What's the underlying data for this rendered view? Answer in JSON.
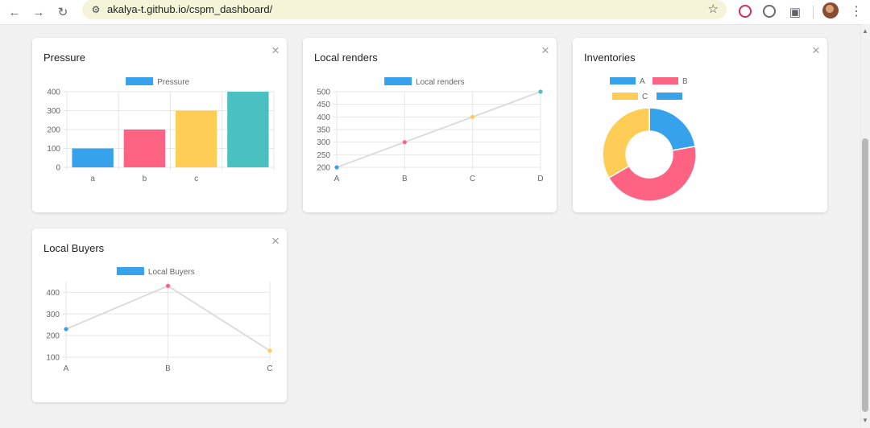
{
  "browser": {
    "url": "akalya-t.github.io/cspm_dashboard/",
    "icons": [
      "back-arrow-icon",
      "forward-arrow-icon",
      "reload-icon",
      "site-info-icon",
      "bookmark-star-icon",
      "extension-icon",
      "puzzle-icon",
      "avatar",
      "more-menu-icon"
    ]
  },
  "cards": {
    "pressure": {
      "title": "Pressure",
      "close_label": "×",
      "chart_data": {
        "type": "bar",
        "title": "",
        "categories": [
          "a",
          "b",
          "c",
          ""
        ],
        "series": [
          {
            "name": "Pressure",
            "values": [
              100,
              200,
              300,
              400
            ]
          }
        ],
        "colors": [
          "#36a2eb",
          "#ff6384",
          "#ffcd56",
          "#4bc0c0"
        ],
        "yticks": [
          0,
          100,
          200,
          300,
          400
        ],
        "ylim": [
          0,
          400
        ],
        "grid": true,
        "legend": "top"
      }
    },
    "local_renders": {
      "title": "Local renders",
      "close_label": "×",
      "chart_data": {
        "type": "line",
        "title": "",
        "categories": [
          "A",
          "B",
          "C",
          "D"
        ],
        "series": [
          {
            "name": "Local renders",
            "values": [
              200,
              300,
              400,
              500
            ]
          }
        ],
        "point_colors": [
          "#36a2eb",
          "#ff6384",
          "#ffcd56",
          "#4bc0c0"
        ],
        "legend_color": "#36a2eb",
        "yticks": [
          200,
          250,
          300,
          350,
          400,
          450,
          500
        ],
        "ylim": [
          200,
          500
        ],
        "grid": true,
        "legend": "top"
      }
    },
    "inventories": {
      "title": "Inventories",
      "close_label": "×",
      "chart_data": {
        "type": "pie",
        "variant": "doughnut",
        "title": "",
        "labels": [
          "A",
          "B",
          "C",
          ""
        ],
        "values": [
          100,
          200,
          150,
          0
        ],
        "colors": [
          "#36a2eb",
          "#ff6384",
          "#ffcd56",
          "#36a2eb"
        ],
        "legend": "top"
      }
    },
    "local_buyers": {
      "title": "Local Buyers",
      "close_label": "×",
      "chart_data": {
        "type": "line",
        "title": "",
        "categories": [
          "A",
          "B",
          "C"
        ],
        "series": [
          {
            "name": "Local Buyers",
            "values": [
              230,
              430,
              130
            ]
          }
        ],
        "point_colors": [
          "#36a2eb",
          "#ff6384",
          "#ffcd56"
        ],
        "legend_color": "#36a2eb",
        "yticks": [
          100,
          200,
          300,
          400
        ],
        "ylim": [
          100,
          450
        ],
        "grid": true,
        "legend": "top"
      }
    }
  }
}
